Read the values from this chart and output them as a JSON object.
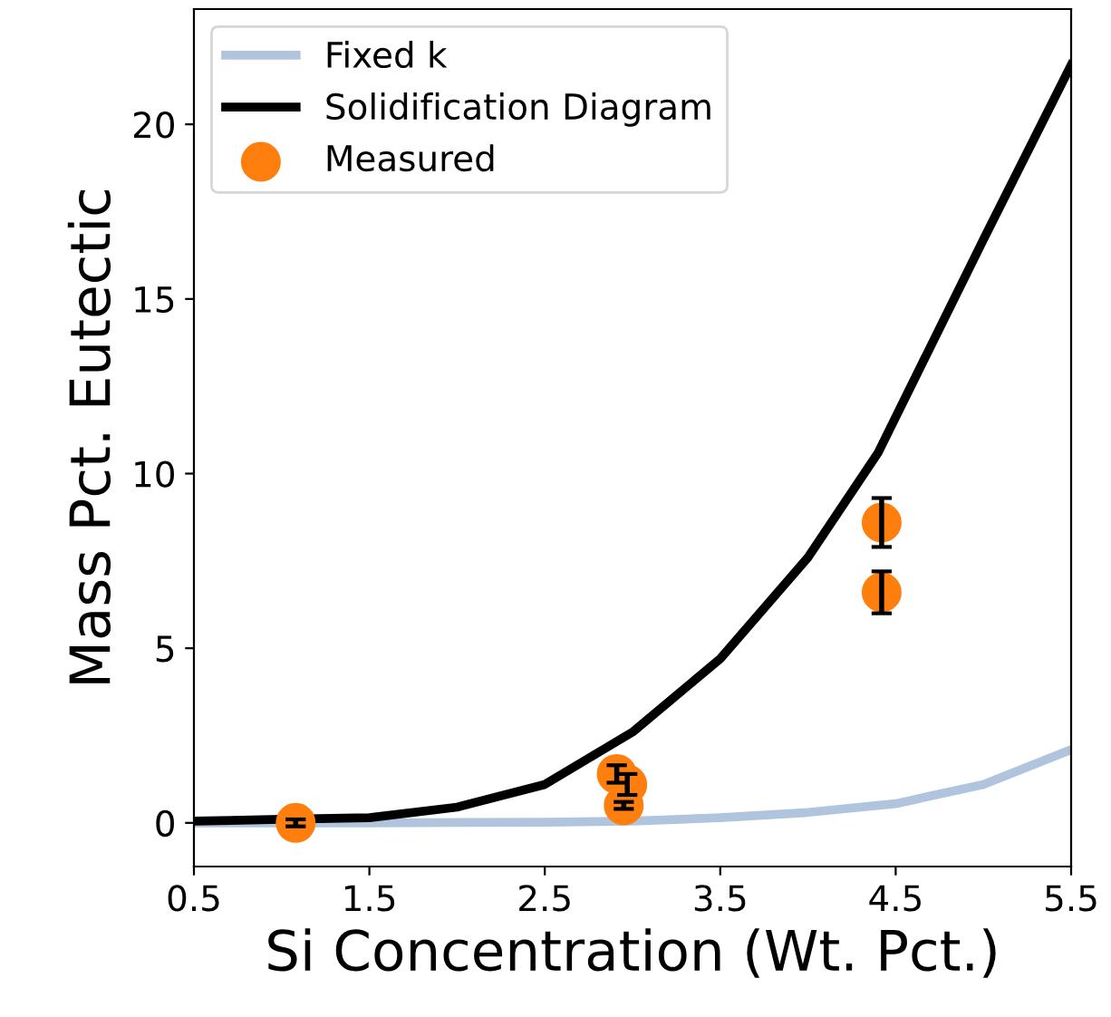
{
  "chart_data": {
    "type": "line",
    "xlabel": "Si Concentration (Wt. Pct.)",
    "ylabel": "Mass Pct. Eutectic",
    "xlim": [
      0.5,
      5.5
    ],
    "ylim": [
      -1.25,
      23.3
    ],
    "xticks": [
      0.5,
      1.5,
      2.5,
      3.5,
      4.5,
      5.5
    ],
    "yticks": [
      0,
      5,
      10,
      15,
      20
    ],
    "legend": "top left",
    "grid": false,
    "series": [
      {
        "name": "Fixed k",
        "color": "#b0c4de",
        "x": [
          0.5,
          1.5,
          2.5,
          3.0,
          3.5,
          4.0,
          4.5,
          5.0,
          5.5
        ],
        "values": [
          0,
          0,
          0.02,
          0.05,
          0.15,
          0.3,
          0.55,
          1.1,
          2.1
        ]
      },
      {
        "name": "Solidification Diagram",
        "color": "#000000",
        "x": [
          0.5,
          1.0,
          1.5,
          2.0,
          2.5,
          3.0,
          3.5,
          4.0,
          4.4,
          5.0,
          5.5
        ],
        "values": [
          0.05,
          0.1,
          0.15,
          0.45,
          1.1,
          2.6,
          4.7,
          7.6,
          10.6,
          16.7,
          21.7
        ]
      },
      {
        "name": "Measured",
        "type": "scatter",
        "color": "#ff7f0e",
        "marker": "circle",
        "x": [
          1.08,
          2.91,
          2.97,
          2.95,
          4.42,
          4.42
        ],
        "values": [
          0,
          1.4,
          1.1,
          0.5,
          8.6,
          6.6
        ],
        "errors": [
          0.1,
          0.25,
          0.3,
          0.1,
          0.7,
          0.6
        ]
      }
    ]
  }
}
